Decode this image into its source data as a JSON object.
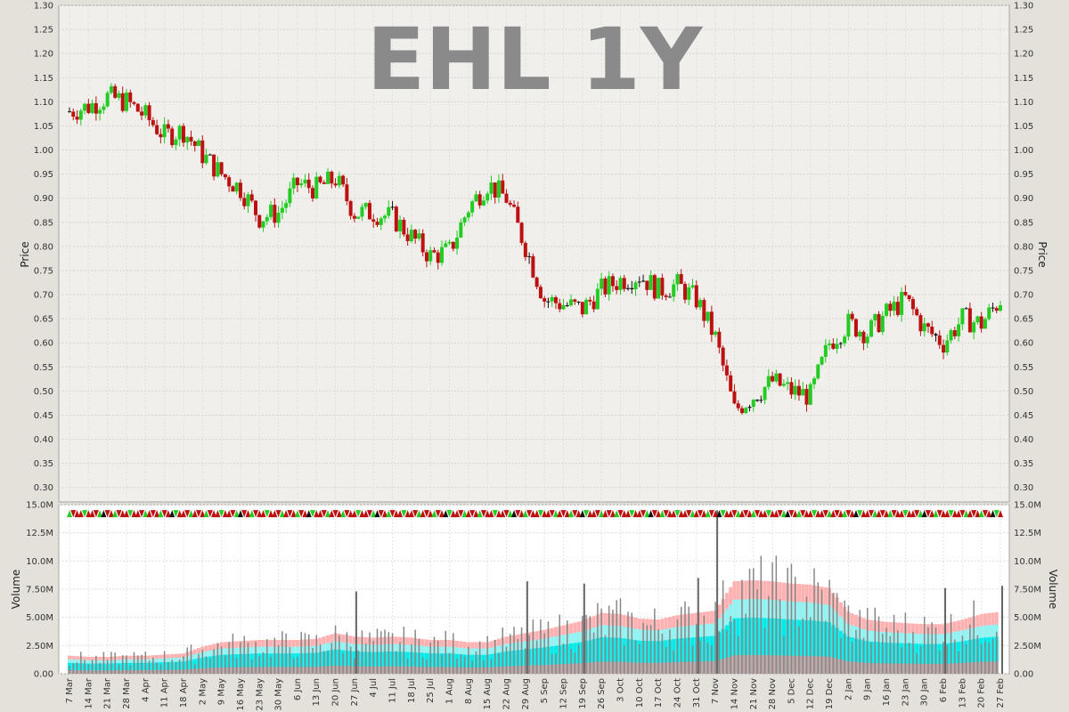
{
  "chart_data": [
    {
      "type": "candlestick",
      "title": "EHL 1Y",
      "ylabel": "Price",
      "ylim": [
        0.27,
        1.3
      ],
      "yticks": [
        "1.30",
        "1.25",
        "1.20",
        "1.15",
        "1.10",
        "1.05",
        "1.00",
        "0.95",
        "0.90",
        "0.85",
        "0.80",
        "0.75",
        "0.70",
        "0.65",
        "0.60",
        "0.55",
        "0.50",
        "0.45",
        "0.40",
        "0.35",
        "0.30"
      ],
      "x_labels": [
        "7 Mar",
        "14 Mar",
        "21 Mar",
        "28 Mar",
        "4 Apr",
        "11 Apr",
        "18 Apr",
        "2 May",
        "9 May",
        "16 May",
        "23 May",
        "30 May",
        "6 Jun",
        "13 Jun",
        "20 Jun",
        "27 Jun",
        "4 Jul",
        "11 Jul",
        "18 Jul",
        "25 Jul",
        "1 Aug",
        "8 Aug",
        "15 Aug",
        "22 Aug",
        "29 Aug",
        "5 Sep",
        "12 Sep",
        "19 Sep",
        "26 Sep",
        "3 Oct",
        "10 Oct",
        "17 Oct",
        "24 Oct",
        "31 Oct",
        "7 Nov",
        "14 Nov",
        "21 Nov",
        "28 Nov",
        "5 Dec",
        "12 Dec",
        "19 Dec",
        "2 Jan",
        "9 Jan",
        "16 Jan",
        "23 Jan",
        "30 Jan",
        "6 Feb",
        "13 Feb",
        "20 Feb",
        "27 Feb"
      ],
      "weekly_close": [
        1.08,
        1.09,
        1.11,
        1.1,
        1.07,
        1.03,
        1.04,
        0.99,
        0.95,
        0.92,
        0.86,
        0.87,
        0.93,
        0.92,
        0.94,
        0.87,
        0.87,
        0.86,
        0.82,
        0.78,
        0.79,
        0.88,
        0.93,
        0.9,
        0.8,
        0.69,
        0.68,
        0.67,
        0.71,
        0.73,
        0.74,
        0.71,
        0.72,
        0.69,
        0.61,
        0.46,
        0.49,
        0.52,
        0.5,
        0.49,
        0.6,
        0.64,
        0.62,
        0.66,
        0.69,
        0.63,
        0.6,
        0.65,
        0.64,
        0.69
      ],
      "colors": {
        "up": "#22cc22",
        "down": "#bb1111",
        "flat": "#111111"
      }
    },
    {
      "type": "bar",
      "ylabel": "Volume",
      "ylim": [
        0,
        15.0
      ],
      "yticks": [
        "15.0M",
        "12.5M",
        "10.0M",
        "7.50M",
        "5.00M",
        "2.50M",
        "0.00"
      ],
      "weekly_volume_avg": [
        1.6,
        1.5,
        1.5,
        1.6,
        1.6,
        1.7,
        1.8,
        2.4,
        2.8,
        2.9,
        3.0,
        3.0,
        3.0,
        3.1,
        3.6,
        3.3,
        3.2,
        3.3,
        3.2,
        3.0,
        3.0,
        2.8,
        2.8,
        3.3,
        3.6,
        3.9,
        4.3,
        4.7,
        5.4,
        5.3,
        4.9,
        4.8,
        5.2,
        5.4,
        5.6,
        8.2,
        8.3,
        8.2,
        8.0,
        7.9,
        7.6,
        5.5,
        4.8,
        4.6,
        4.5,
        4.4,
        4.4,
        4.8,
        5.3,
        5.5
      ],
      "spikes": [
        {
          "week": 34,
          "value": 14.5
        },
        {
          "week": 33,
          "value": 8.5
        },
        {
          "week": 24,
          "value": 8.2
        },
        {
          "week": 27,
          "value": 8.0
        },
        {
          "week": 15,
          "value": 7.3
        },
        {
          "week": 46,
          "value": 7.6
        },
        {
          "week": 49,
          "value": 7.8
        }
      ],
      "band_colors": {
        "pink": "#ffb0b0",
        "cyan_light": "#8ff4f4",
        "cyan": "#00eaea",
        "bar": "#888888"
      }
    }
  ]
}
